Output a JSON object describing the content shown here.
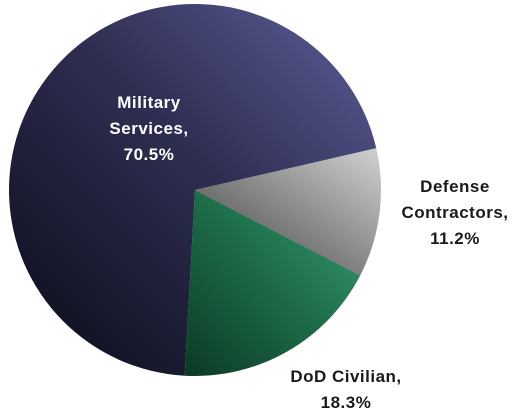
{
  "chart_data": {
    "type": "pie",
    "title": "",
    "start_angle_deg": 13,
    "direction": "clockwise",
    "slices": [
      {
        "name": "Defense Contractors",
        "value": 11.2,
        "label_lines": [
          "Defense",
          "Contractors,",
          "11.2%"
        ],
        "label_color": "#1a1a1a",
        "colors": {
          "light": "#d2d2d2",
          "mid": "#8f8f8f",
          "dark": "#3c3c3c"
        }
      },
      {
        "name": "DoD Civilian",
        "value": 18.3,
        "label_lines": [
          "DoD Civilian,",
          "18.3%"
        ],
        "label_color": "#1a1a1a",
        "colors": {
          "light": "#3a9f72",
          "mid": "#1f6f4c",
          "dark": "#0b3a24"
        }
      },
      {
        "name": "Military Services",
        "value": 70.5,
        "label_lines": [
          "Military",
          "Services,",
          "70.5%"
        ],
        "label_color": "#ffffff",
        "colors": {
          "light": "#5e5f9a",
          "mid": "#2e2e52",
          "dark": "#0a0a16"
        }
      }
    ]
  }
}
